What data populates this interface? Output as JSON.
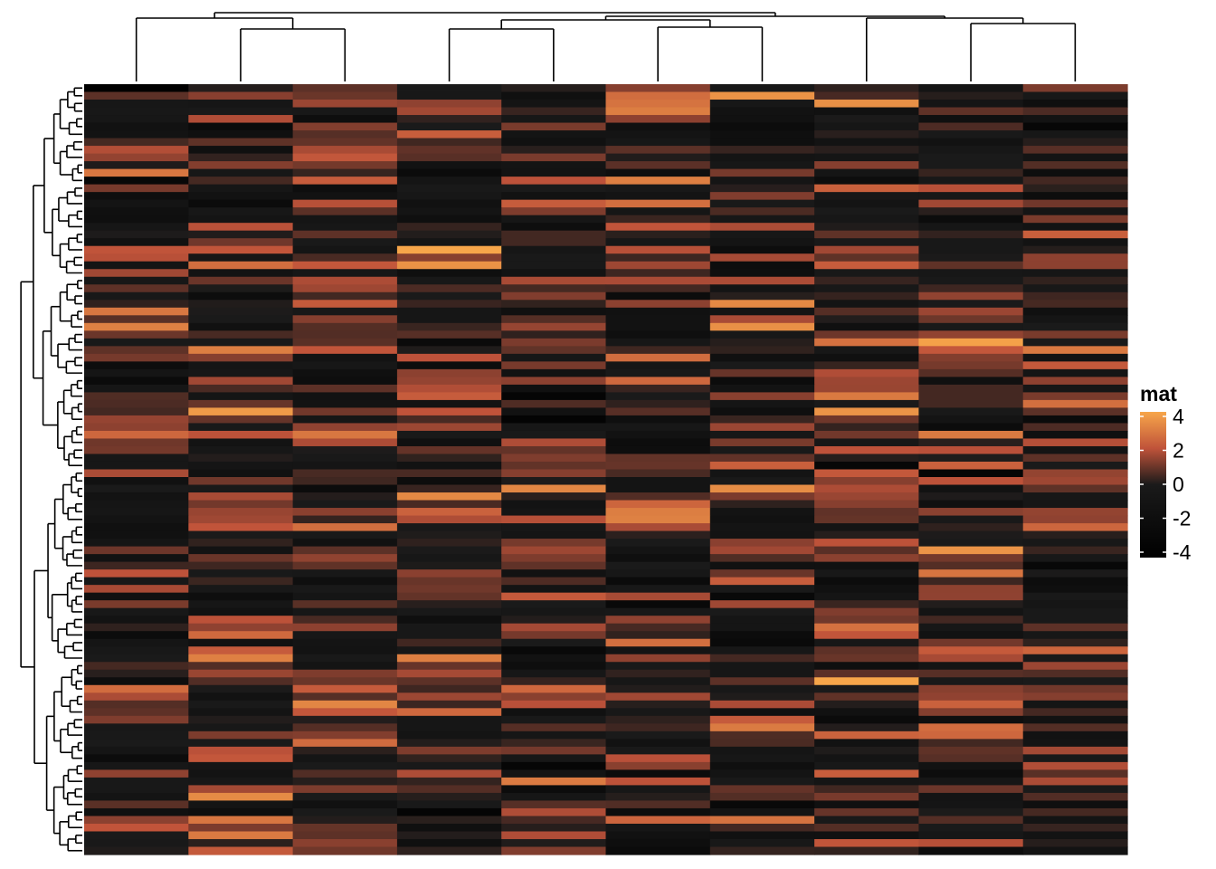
{
  "chart_data": {
    "type": "heatmap",
    "title": "",
    "xlabel": "",
    "ylabel": "",
    "n_rows": 100,
    "n_cols": 10,
    "legend": {
      "title": "mat",
      "ticks": [
        "4",
        "2",
        "0",
        "-2",
        "-4"
      ],
      "range": [
        -4,
        4
      ],
      "placement": "right"
    },
    "color_scale": {
      "low": "#000000",
      "mid": "#1a1a1a",
      "midhigh": "#c0533a",
      "high": "#f7a64a"
    },
    "column_dendrogram": true,
    "row_dendrogram": true,
    "seed": 42
  }
}
